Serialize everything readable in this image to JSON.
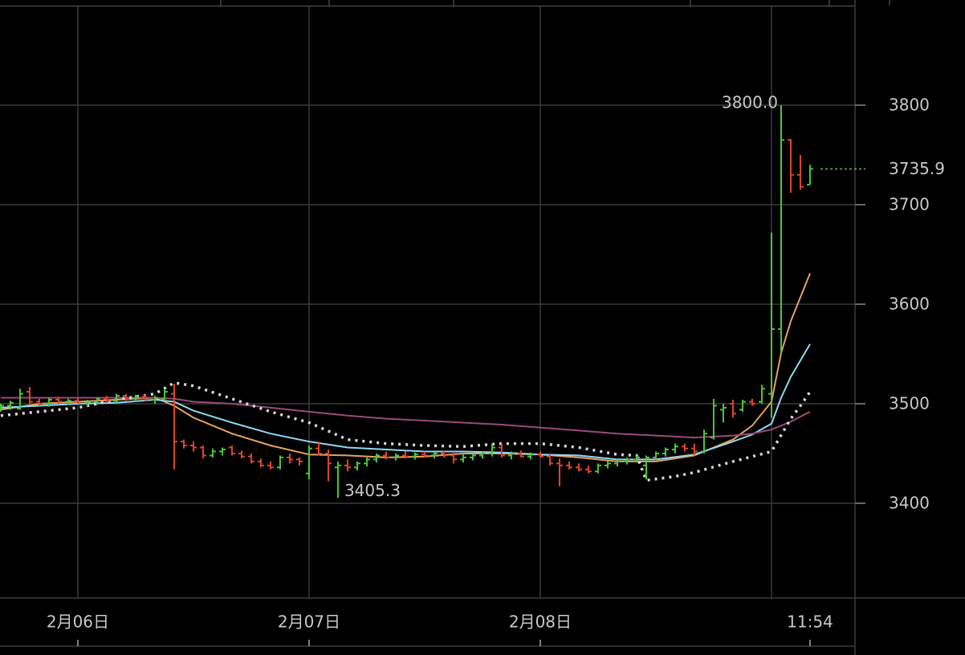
{
  "chart_data": {
    "type": "ohlc",
    "xlim": [
      -0.08,
      88.67
    ],
    "ylim": [
      3304.8,
      3899.2
    ],
    "yticks": [
      3400,
      3500,
      3600,
      3700,
      3800
    ],
    "xticks": [
      {
        "value": 8,
        "label": "2月06日"
      },
      {
        "value": 32,
        "label": "2月07日"
      },
      {
        "value": 56,
        "label": "2月08日"
      },
      {
        "value": 84,
        "label": "11:54"
      }
    ],
    "xgrid": [
      8,
      32,
      56,
      80
    ],
    "grid": true,
    "up_color": "#4cc63a",
    "down_color": "#e0452b",
    "last_price": 3735.9,
    "annotations": [
      {
        "x": 81,
        "y": 3800,
        "label": "3800.0"
      },
      {
        "x": 35,
        "y": 3405.3,
        "label": "3405.3"
      }
    ],
    "bars": {
      "open": [
        3496,
        3498,
        3495,
        3512,
        3502,
        3500,
        3504,
        3502,
        3503,
        3501,
        3502,
        3505,
        3503,
        3508,
        3505,
        3507,
        3504,
        3505,
        3510,
        3462,
        3458,
        3456,
        3448,
        3452,
        3456,
        3450,
        3447,
        3442,
        3438,
        3436,
        3446,
        3444,
        3430,
        3455,
        3450,
        3436,
        3438,
        3436,
        3440,
        3444,
        3448,
        3446,
        3448,
        3447,
        3449,
        3448,
        3450,
        3448,
        3444,
        3446,
        3448,
        3450,
        3456,
        3448,
        3450,
        3447,
        3449,
        3447,
        3440,
        3438,
        3436,
        3434,
        3432,
        3438,
        3440,
        3442,
        3444,
        3438,
        3446,
        3450,
        3454,
        3457,
        3455,
        3452,
        3466,
        3494,
        3500,
        3494,
        3502,
        3502,
        3510,
        3575,
        3765,
        3730,
        3720
      ],
      "high": [
        3500,
        3503,
        3515,
        3517,
        3505,
        3506,
        3507,
        3505,
        3506,
        3504,
        3506,
        3508,
        3510,
        3510,
        3509,
        3510,
        3508,
        3515,
        3520,
        3464,
        3462,
        3458,
        3455,
        3456,
        3458,
        3453,
        3450,
        3445,
        3442,
        3448,
        3450,
        3446,
        3458,
        3462,
        3454,
        3442,
        3444,
        3442,
        3446,
        3450,
        3452,
        3450,
        3452,
        3451,
        3452,
        3451,
        3453,
        3452,
        3449,
        3450,
        3452,
        3460,
        3460,
        3452,
        3453,
        3451,
        3452,
        3450,
        3445,
        3442,
        3440,
        3438,
        3440,
        3443,
        3444,
        3446,
        3448,
        3448,
        3452,
        3456,
        3460,
        3460,
        3460,
        3474,
        3505,
        3500,
        3504,
        3504,
        3505,
        3519,
        3672,
        3800,
        3766,
        3750,
        3740
      ],
      "low": [
        3492,
        3494,
        3494,
        3500,
        3498,
        3497,
        3500,
        3499,
        3500,
        3498,
        3499,
        3501,
        3501,
        3503,
        3502,
        3503,
        3500,
        3503,
        3434,
        3455,
        3452,
        3445,
        3446,
        3448,
        3448,
        3445,
        3440,
        3436,
        3434,
        3434,
        3440,
        3438,
        3424,
        3448,
        3422,
        3405.3,
        3432,
        3433,
        3437,
        3441,
        3444,
        3443,
        3445,
        3444,
        3446,
        3445,
        3446,
        3440,
        3441,
        3443,
        3445,
        3447,
        3446,
        3444,
        3446,
        3444,
        3446,
        3438,
        3417,
        3434,
        3432,
        3430,
        3430,
        3435,
        3437,
        3439,
        3441,
        3424,
        3443,
        3447,
        3450,
        3452,
        3448,
        3450,
        3464,
        3481,
        3486,
        3492,
        3498,
        3500,
        3486,
        3551,
        3712,
        3715,
        3720
      ],
      "close": [
        3498,
        3501,
        3510,
        3502,
        3500,
        3504,
        3502,
        3503,
        3501,
        3502,
        3505,
        3503,
        3508,
        3505,
        3507,
        3504,
        3506,
        3512,
        3462,
        3458,
        3456,
        3448,
        3452,
        3454,
        3450,
        3447,
        3442,
        3438,
        3436,
        3446,
        3444,
        3442,
        3455,
        3450,
        3440,
        3438,
        3436,
        3440,
        3444,
        3448,
        3446,
        3448,
        3447,
        3449,
        3448,
        3450,
        3448,
        3444,
        3446,
        3448,
        3450,
        3456,
        3448,
        3450,
        3447,
        3449,
        3447,
        3440,
        3438,
        3436,
        3434,
        3432,
        3438,
        3440,
        3442,
        3444,
        3446,
        3446,
        3450,
        3454,
        3457,
        3455,
        3452,
        3470,
        3498,
        3496,
        3490,
        3502,
        3500,
        3515,
        3575,
        3765,
        3730,
        3718,
        3735.9
      ]
    },
    "lines": [
      {
        "color": "#e8a060",
        "style": "solid",
        "x": [
          0,
          4,
          8,
          12,
          16,
          18,
          20,
          24,
          28,
          32,
          36,
          40,
          44,
          48,
          52,
          56,
          60,
          64,
          68,
          72,
          76,
          78,
          80,
          81,
          82,
          84
        ],
        "values": [
          3494,
          3500,
          3502,
          3504,
          3506,
          3498,
          3486,
          3470,
          3458,
          3449,
          3448,
          3446,
          3447,
          3450,
          3450,
          3449,
          3446,
          3442,
          3442,
          3448,
          3464,
          3478,
          3502,
          3551,
          3583,
          3631
        ]
      },
      {
        "color": "#8fd8f0",
        "style": "solid",
        "x": [
          0,
          4,
          8,
          12,
          16,
          18,
          20,
          24,
          28,
          32,
          36,
          40,
          44,
          48,
          52,
          56,
          60,
          64,
          68,
          72,
          76,
          78,
          80,
          81,
          82,
          84
        ],
        "values": [
          3496,
          3498,
          3500,
          3501,
          3504,
          3502,
          3493,
          3481,
          3470,
          3462,
          3456,
          3454,
          3452,
          3452,
          3451,
          3449,
          3448,
          3444,
          3444,
          3449,
          3462,
          3469,
          3480,
          3506,
          3527,
          3560
        ]
      },
      {
        "color": "#9a4a78",
        "style": "solid",
        "x": [
          0,
          8,
          16,
          18,
          20,
          24,
          28,
          32,
          36,
          40,
          44,
          48,
          52,
          56,
          60,
          64,
          68,
          72,
          76,
          78,
          80,
          82,
          84
        ],
        "values": [
          3506,
          3506,
          3506,
          3505,
          3502,
          3500,
          3496,
          3492,
          3488,
          3485,
          3483,
          3481,
          3479,
          3476,
          3473,
          3470,
          3468,
          3466,
          3468,
          3470,
          3474,
          3482,
          3492
        ]
      },
      {
        "color": "#d8d8d8",
        "style": "dotted",
        "x": [
          0,
          8,
          12,
          16,
          18,
          20,
          24,
          28,
          32,
          36,
          40,
          44,
          48,
          52,
          56,
          60,
          64,
          66,
          67,
          70,
          72,
          76,
          80,
          82,
          83,
          84
        ],
        "values": [
          3488,
          3496,
          3504,
          3510,
          3521,
          3518,
          3505,
          3492,
          3481,
          3464,
          3460,
          3458,
          3457,
          3460,
          3460,
          3456,
          3449,
          3448,
          3423,
          3427,
          3431,
          3442,
          3452,
          3485,
          3498,
          3512
        ]
      }
    ]
  }
}
